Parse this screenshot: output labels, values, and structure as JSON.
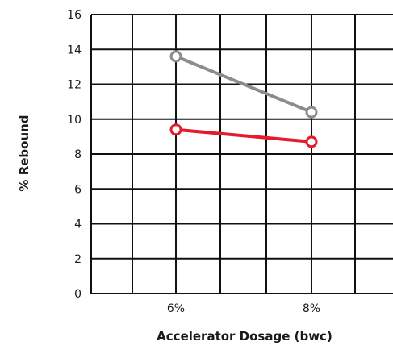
{
  "chart_data": {
    "type": "line",
    "title": "",
    "xlabel": "Accelerator Dosage (bwc)",
    "ylabel": "% Rebound",
    "categories": [
      "6%",
      "8%"
    ],
    "ylim": [
      0,
      16
    ],
    "yticks": [
      0,
      2,
      4,
      6,
      8,
      10,
      12,
      14,
      16
    ],
    "ytick_labels": [
      "0",
      "2",
      "4",
      "6",
      "8",
      "10",
      "12",
      "14",
      "16"
    ],
    "grid": true,
    "legend": "none",
    "series": [
      {
        "values": [
          13.6,
          10.4
        ],
        "color": "#8c8c8c"
      },
      {
        "values": [
          9.4,
          8.7
        ],
        "color": "#e31b2b"
      }
    ]
  }
}
